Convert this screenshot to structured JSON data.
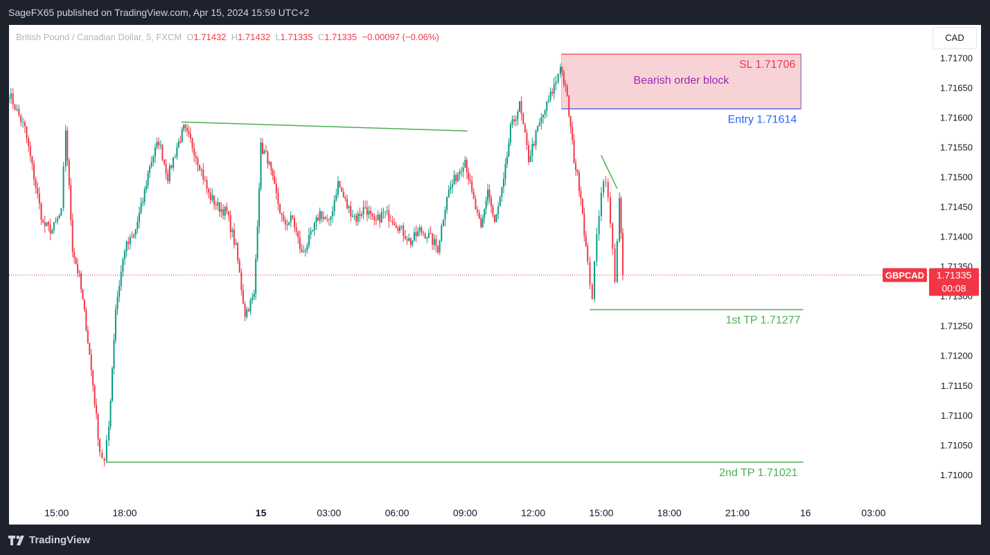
{
  "header": {
    "publisher": "SageFX65 published on TradingView.com, Apr 15, 2024 15:59 UTC+2"
  },
  "legend": {
    "symbol": "British Pound / Canadian Dollar, 5, FXCM",
    "o_label": "O",
    "o_value": "1.71432",
    "h_label": "H",
    "h_value": "1.71432",
    "l_label": "L",
    "l_value": "1.71335",
    "c_label": "C",
    "c_value": "1.71335",
    "change": "−0.00097 (−0.06%)"
  },
  "currency_button": "CAD",
  "footer": {
    "brand": "TradingView"
  },
  "price_tag": {
    "symbol": "GBPCAD",
    "price": "1.71335",
    "countdown": "00:08"
  },
  "colors": {
    "up": "#089981",
    "down": "#f23645",
    "green_line": "#4caf50",
    "blue_line": "#2962ff",
    "zone_fill": "#f7d3d8"
  },
  "chart_data": {
    "type": "candlestick",
    "y_ticks": [
      1.71,
      1.7105,
      1.711,
      1.7115,
      1.712,
      1.7125,
      1.713,
      1.7135,
      1.714,
      1.7145,
      1.715,
      1.7155,
      1.716,
      1.7165,
      1.717
    ],
    "y_tick_labels": [
      "1.71000",
      "1.71050",
      "1.71100",
      "1.71150",
      "1.71200",
      "1.71250",
      "1.71300",
      "1.71350",
      "1.71400",
      "1.71450",
      "1.71500",
      "1.71550",
      "1.71600",
      "1.71650",
      "1.71700"
    ],
    "ylim": [
      1.70965,
      1.71755
    ],
    "x_ticks": [
      {
        "t": 15.0,
        "label": "15:00"
      },
      {
        "t": 18.0,
        "label": "18:00"
      },
      {
        "t": 24.0,
        "label": "15",
        "bold": true
      },
      {
        "t": 27.0,
        "label": "03:00"
      },
      {
        "t": 30.0,
        "label": "06:00"
      },
      {
        "t": 33.0,
        "label": "09:00"
      },
      {
        "t": 36.0,
        "label": "12:00"
      },
      {
        "t": 39.0,
        "label": "15:00"
      },
      {
        "t": 42.0,
        "label": "18:00"
      },
      {
        "t": 45.0,
        "label": "21:00"
      },
      {
        "t": 48.0,
        "label": "16"
      },
      {
        "t": 51.0,
        "label": "03:00"
      }
    ],
    "xlim": [
      12.9,
      53.2
    ],
    "closes": [
      [
        12.9,
        1.7164
      ],
      [
        13.6,
        1.7158
      ],
      [
        14.0,
        1.715
      ],
      [
        14.4,
        1.7142
      ],
      [
        14.8,
        1.7141
      ],
      [
        15.2,
        1.7144
      ],
      [
        15.4,
        1.7158
      ],
      [
        15.7,
        1.7138
      ],
      [
        16.0,
        1.7133
      ],
      [
        16.3,
        1.7125
      ],
      [
        16.6,
        1.7115
      ],
      [
        16.9,
        1.7104
      ],
      [
        17.1,
        1.7102
      ],
      [
        17.3,
        1.7108
      ],
      [
        17.6,
        1.7128
      ],
      [
        18.0,
        1.7138
      ],
      [
        18.4,
        1.714
      ],
      [
        18.8,
        1.7146
      ],
      [
        19.1,
        1.7152
      ],
      [
        19.5,
        1.7156
      ],
      [
        19.9,
        1.715
      ],
      [
        20.3,
        1.7155
      ],
      [
        20.6,
        1.7158
      ],
      [
        20.9,
        1.7156
      ],
      [
        21.3,
        1.7152
      ],
      [
        21.7,
        1.7147
      ],
      [
        22.1,
        1.7145
      ],
      [
        22.5,
        1.7144
      ],
      [
        22.9,
        1.7138
      ],
      [
        23.3,
        1.7127
      ],
      [
        23.7,
        1.713
      ],
      [
        24.0,
        1.7155
      ],
      [
        24.3,
        1.7153
      ],
      [
        24.6,
        1.7148
      ],
      [
        25.0,
        1.7142
      ],
      [
        25.4,
        1.7143
      ],
      [
        25.8,
        1.7137
      ],
      [
        26.2,
        1.714
      ],
      [
        26.6,
        1.7144
      ],
      [
        27.0,
        1.7142
      ],
      [
        27.4,
        1.7149
      ],
      [
        27.8,
        1.7145
      ],
      [
        28.2,
        1.7143
      ],
      [
        28.6,
        1.7145
      ],
      [
        29.0,
        1.7142
      ],
      [
        29.4,
        1.7144
      ],
      [
        29.8,
        1.7143
      ],
      [
        30.2,
        1.7141
      ],
      [
        30.6,
        1.7139
      ],
      [
        31.0,
        1.7141
      ],
      [
        31.4,
        1.714
      ],
      [
        31.8,
        1.7138
      ],
      [
        32.2,
        1.7147
      ],
      [
        32.6,
        1.715
      ],
      [
        33.0,
        1.7153
      ],
      [
        33.3,
        1.7147
      ],
      [
        33.7,
        1.7141
      ],
      [
        34.0,
        1.7148
      ],
      [
        34.3,
        1.7142
      ],
      [
        34.7,
        1.7149
      ],
      [
        35.0,
        1.7158
      ],
      [
        35.4,
        1.7162
      ],
      [
        35.8,
        1.7153
      ],
      [
        36.2,
        1.7158
      ],
      [
        36.6,
        1.7162
      ],
      [
        37.0,
        1.7166
      ],
      [
        37.2,
        1.7169
      ],
      [
        37.5,
        1.7163
      ],
      [
        37.8,
        1.7153
      ],
      [
        38.1,
        1.7147
      ],
      [
        38.4,
        1.7135
      ],
      [
        38.6,
        1.713
      ],
      [
        38.8,
        1.714
      ],
      [
        39.0,
        1.7148
      ],
      [
        39.2,
        1.715
      ],
      [
        39.4,
        1.7142
      ],
      [
        39.6,
        1.7133
      ],
      [
        39.8,
        1.7146
      ],
      [
        39.95,
        1.71335
      ]
    ],
    "annotations": {
      "zone_label": "Bearish order block",
      "sl_label": "SL 1.71706",
      "sl_price": 1.71706,
      "entry_label": "Entry  1.71614",
      "entry_price": 1.71614,
      "tp1_label": "1st TP 1.71277",
      "tp1_price": 1.71277,
      "tp2_label": "2nd TP 1.71021",
      "tp2_price": 1.71021,
      "zone_t": [
        37.25,
        47.8
      ],
      "tp1_t": [
        38.5,
        47.9
      ],
      "tp2_t": [
        17.2,
        47.9
      ],
      "trendline_upper": [
        [
          20.5,
          1.71592
        ],
        [
          33.1,
          1.71577
        ]
      ],
      "trendline_small": [
        [
          39.0,
          1.71536
        ],
        [
          39.7,
          1.7148
        ]
      ]
    }
  }
}
